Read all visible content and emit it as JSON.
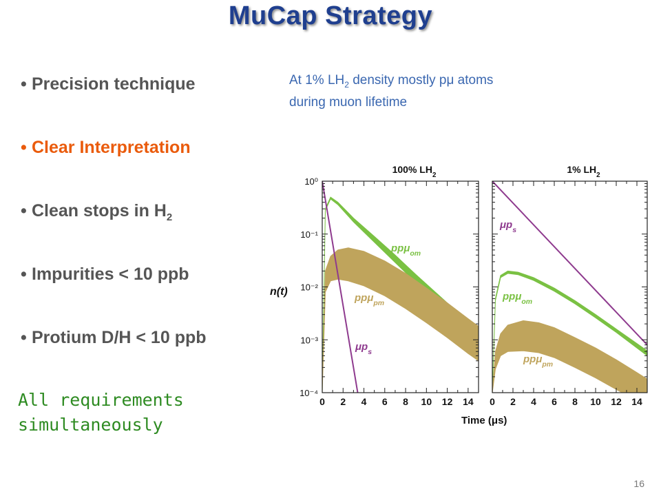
{
  "title": "MuCap Strategy",
  "bullets": [
    {
      "text": "Precision technique",
      "sub": ""
    },
    {
      "text": "Clear Interpretation",
      "sub": ""
    },
    {
      "text": "Clean stops in H",
      "sub": "2"
    },
    {
      "text": "Impurities < 10 ppb",
      "sub": ""
    },
    {
      "text": "Protium D/H < 10 ppb",
      "sub": ""
    }
  ],
  "bullet_symbol": "•",
  "summary": {
    "line1": "All requirements",
    "line2": "simultaneously"
  },
  "note": {
    "part1": "At 1% LH",
    "sub": "2",
    "part2": " density mostly pμ atoms",
    "line2": "during muon lifetime"
  },
  "page_number": "16",
  "colors": {
    "title": "#1f3f8f",
    "highlight": "#ea5b0c",
    "summary": "#2e8b22",
    "note": "#3a67b0",
    "green": "#7ac143",
    "gold": "#bfa45c",
    "purple": "#8e3a8e"
  },
  "chart_data": [
    {
      "type": "line",
      "title": "100% LH",
      "title_sub": "2",
      "xlabel": "Time (μs)",
      "ylabel": "n(t)",
      "xlim": [
        0,
        15
      ],
      "ylim": [
        0.0001,
        1
      ],
      "yscale": "log",
      "x_ticks": [
        0,
        2,
        4,
        6,
        8,
        10,
        12,
        14
      ],
      "y_tick_labels": [
        "10⁰",
        "10⁻¹",
        "10⁻²",
        "10⁻³",
        "10⁻⁴"
      ],
      "y_tick_values": [
        1,
        0.1,
        0.01,
        0.001,
        0.0001
      ],
      "series": [
        {
          "name": "ppμom",
          "label_main": "ppμ",
          "label_sub": "om",
          "style": "band",
          "color": "green",
          "x": [
            0,
            0.3,
            0.8,
            1.5,
            3,
            5,
            7,
            9,
            11,
            13,
            15
          ],
          "upper": [
            0.0001,
            0.3,
            0.5,
            0.4,
            0.2,
            0.09,
            0.04,
            0.017,
            0.0075,
            0.0033,
            0.0014
          ],
          "lower": [
            0.0001,
            0.28,
            0.46,
            0.36,
            0.17,
            0.07,
            0.029,
            0.012,
            0.0049,
            0.002,
            0.00085
          ]
        },
        {
          "name": "ppμpm",
          "label_main": "ppμ",
          "label_sub": "pm",
          "style": "band",
          "color": "gold",
          "x": [
            0,
            0.3,
            0.8,
            1.5,
            2.5,
            4,
            6,
            8,
            10,
            12,
            14,
            15
          ],
          "upper": [
            0.0001,
            0.02,
            0.038,
            0.05,
            0.055,
            0.047,
            0.031,
            0.018,
            0.0095,
            0.005,
            0.0025,
            0.0018
          ],
          "lower": [
            0.0001,
            0.008,
            0.013,
            0.014,
            0.013,
            0.0105,
            0.0068,
            0.0039,
            0.0021,
            0.0011,
            0.00055,
            0.0004
          ]
        },
        {
          "name": "μps",
          "label_main": "μp",
          "label_sub": "s",
          "style": "line",
          "color": "purple",
          "x": [
            0,
            3.4
          ],
          "y": [
            1,
            0.0001
          ]
        }
      ]
    },
    {
      "type": "line",
      "title": "1% LH",
      "title_sub": "2",
      "xlim": [
        0,
        15
      ],
      "ylim": [
        0.0001,
        1
      ],
      "yscale": "log",
      "x_ticks": [
        0,
        2,
        4,
        6,
        8,
        10,
        12,
        14
      ],
      "series": [
        {
          "name": "μps",
          "label_main": "μp",
          "label_sub": "s",
          "style": "line",
          "color": "purple",
          "x": [
            0,
            15
          ],
          "y": [
            1,
            0.0008
          ]
        },
        {
          "name": "ppμom",
          "label_main": "ppμ",
          "label_sub": "om",
          "style": "band",
          "color": "green",
          "x": [
            0,
            0.3,
            0.8,
            1.5,
            2.5,
            4,
            6,
            8,
            10,
            12,
            14,
            15
          ],
          "upper": [
            0.0001,
            0.006,
            0.0165,
            0.02,
            0.019,
            0.015,
            0.0095,
            0.0055,
            0.003,
            0.0016,
            0.00085,
            0.00062
          ],
          "lower": [
            0.0001,
            0.0055,
            0.015,
            0.018,
            0.017,
            0.0133,
            0.0083,
            0.0048,
            0.0026,
            0.00138,
            0.0007,
            0.0005
          ]
        },
        {
          "name": "ppμpm",
          "label_main": "ppμ",
          "label_sub": "pm",
          "style": "band",
          "color": "gold",
          "x": [
            0,
            0.3,
            0.8,
            1.5,
            3,
            4.5,
            6,
            8,
            10,
            12,
            14,
            15
          ],
          "upper": [
            0.0001,
            0.0006,
            0.0013,
            0.0019,
            0.0023,
            0.0021,
            0.0017,
            0.0011,
            0.0007,
            0.00042,
            0.00024,
            0.00018
          ],
          "lower": [
            0.0001,
            0.00028,
            0.0005,
            0.0006,
            0.00062,
            0.00057,
            0.00046,
            0.0003,
            0.00019,
            0.000115,
            7e-05,
            5e-05
          ]
        }
      ]
    }
  ]
}
